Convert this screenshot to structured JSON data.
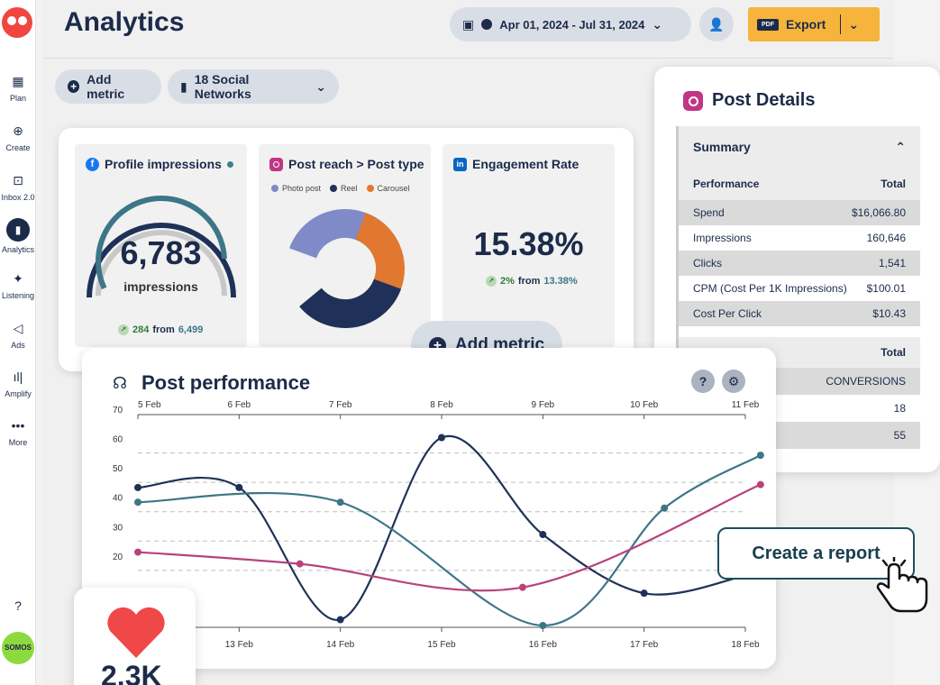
{
  "sidebar": {
    "items": [
      {
        "label": "Plan",
        "icon": "calendar-icon"
      },
      {
        "label": "Create",
        "icon": "plus-circle-icon"
      },
      {
        "label": "Inbox 2.0",
        "icon": "inbox-icon"
      },
      {
        "label": "Analytics",
        "icon": "bar-chart-icon"
      },
      {
        "label": "Listening",
        "icon": "lightbulb-icon"
      },
      {
        "label": "Ads",
        "icon": "megaphone-icon"
      },
      {
        "label": "Amplify",
        "icon": "amplify-icon"
      },
      {
        "label": "More",
        "icon": "ellipsis-icon"
      }
    ],
    "help": "?",
    "avatar": "SOMOS"
  },
  "header": {
    "title": "Analytics",
    "date_range": "Apr 01, 2024 - Jul 31, 2024",
    "export_label": "Export",
    "pdf_badge": "PDF"
  },
  "toolbar": {
    "add_metric": "Add metric",
    "networks": "18 Social Networks"
  },
  "cards": {
    "impressions": {
      "title": "Profile impressions",
      "value": "6,783",
      "unit": "impressions",
      "change": "284",
      "from_word": "from",
      "previous": "6,499",
      "gauge_fraction": 0.88
    },
    "reach": {
      "title": "Post reach > Post type",
      "legend": [
        "Photo post",
        "Reel",
        "Carousel"
      ],
      "colors": [
        "#7f8ac7",
        "#1f3158",
        "#e07832"
      ]
    },
    "engagement": {
      "title": "Engagement Rate",
      "value": "15.38%",
      "change": "2%",
      "from_word": "from",
      "previous": "13.38%"
    },
    "add_metric": "Add metric"
  },
  "post_details": {
    "title": "Post Details",
    "summary_label": "Summary",
    "performance_header": "Performance",
    "total_header": "Total",
    "rows": [
      {
        "label": "Spend",
        "value": "$16,066.80"
      },
      {
        "label": "Impressions",
        "value": "160,646"
      },
      {
        "label": "Clicks",
        "value": "1,541"
      },
      {
        "label": "CPM (Cost Per 1K Impressions)",
        "value": "$100.01"
      },
      {
        "label": "Cost Per Click",
        "value": "$10.43"
      }
    ],
    "second_total": "Total",
    "conversions": "CONVERSIONS",
    "conv_values": [
      "18",
      "55"
    ]
  },
  "performance": {
    "title": "Post performance",
    "help": "?",
    "settings": "⚙"
  },
  "heart_value": "2.3K",
  "report_button": "Create a report",
  "chart_data": {
    "type": "line",
    "title": "Post performance",
    "ylim": [
      0,
      70
    ],
    "yticks": [
      20,
      30,
      40,
      50,
      60,
      70
    ],
    "top_labels": [
      "5 Feb",
      "6 Feb",
      "7 Feb",
      "8 Feb",
      "9 Feb",
      "10 Feb",
      "11 Feb"
    ],
    "bottom_labels": [
      "13 Feb",
      "14 Feb",
      "15 Feb",
      "16 Feb",
      "17 Feb",
      "18 Feb"
    ],
    "series": [
      {
        "name": "navy",
        "color": "#1f3158",
        "points": [
          [
            0,
            47
          ],
          [
            1,
            47
          ],
          [
            2,
            2
          ],
          [
            3,
            64
          ],
          [
            4,
            31
          ],
          [
            5,
            11
          ],
          [
            6,
            17
          ]
        ]
      },
      {
        "name": "teal",
        "color": "#3d7686",
        "points": [
          [
            0,
            42
          ],
          [
            2,
            42
          ],
          [
            4,
            0
          ],
          [
            5.2,
            40
          ],
          [
            6.15,
            58
          ]
        ]
      },
      {
        "name": "magenta",
        "color": "#b8437a",
        "points": [
          [
            0,
            25
          ],
          [
            1.6,
            21
          ],
          [
            3.8,
            13
          ],
          [
            6.15,
            48
          ]
        ]
      }
    ]
  }
}
